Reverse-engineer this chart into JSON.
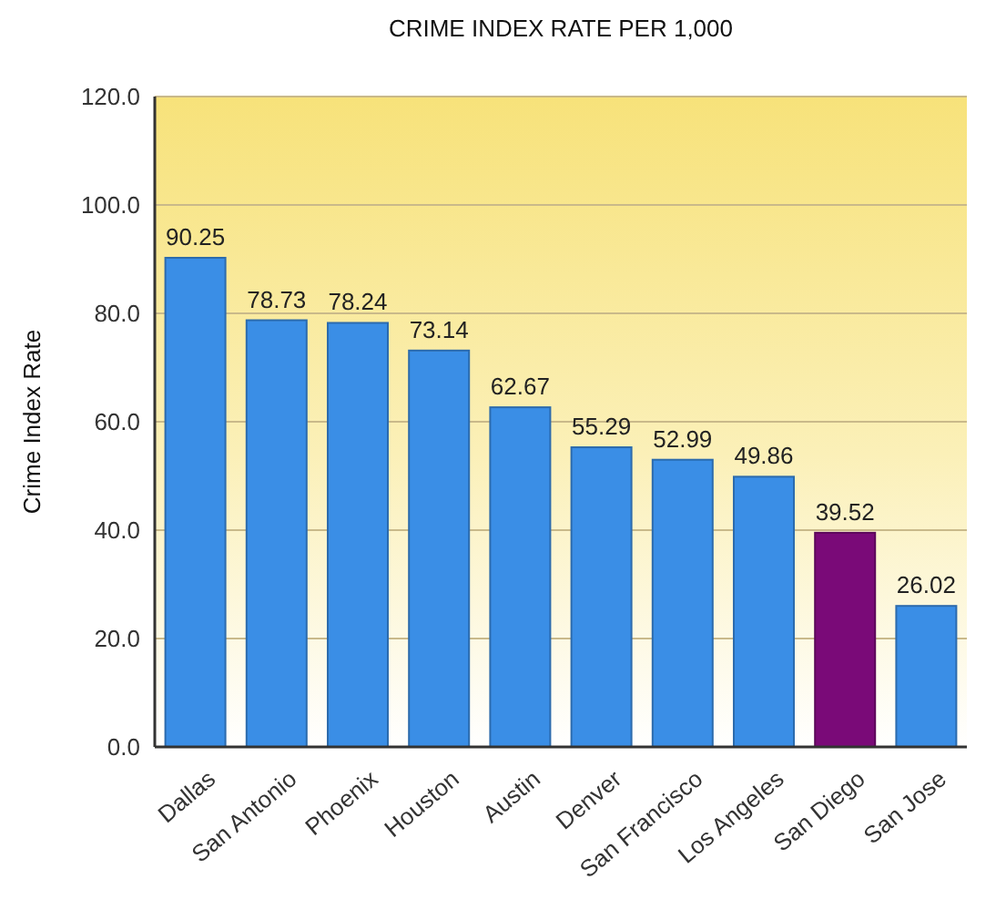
{
  "chart_data": {
    "type": "bar",
    "title": "CRIME INDEX RATE PER 1,000",
    "ylabel": "Crime Index Rate",
    "categories": [
      "Dallas",
      "San Antonio",
      "Phoenix",
      "Houston",
      "Austin",
      "Denver",
      "San Francisco",
      "Los Angeles",
      "San Diego",
      "San Jose"
    ],
    "values": [
      90.25,
      78.73,
      78.24,
      73.14,
      62.67,
      55.29,
      52.99,
      49.86,
      39.52,
      26.02
    ],
    "colors": [
      "#3a8ee6",
      "#3a8ee6",
      "#3a8ee6",
      "#3a8ee6",
      "#3a8ee6",
      "#3a8ee6",
      "#3a8ee6",
      "#3a8ee6",
      "#7a0a78",
      "#3a8ee6"
    ],
    "ylim": [
      0,
      120
    ],
    "yticks": [
      {
        "value": 0,
        "label": "0.0"
      },
      {
        "value": 20,
        "label": "20.0"
      },
      {
        "value": 40,
        "label": "40.0"
      },
      {
        "value": 60,
        "label": "60.0"
      },
      {
        "value": 80,
        "label": "80.0"
      },
      {
        "value": 100,
        "label": "100.0"
      },
      {
        "value": 120,
        "label": "120.0"
      }
    ],
    "grid": "y",
    "data_labels": true
  }
}
